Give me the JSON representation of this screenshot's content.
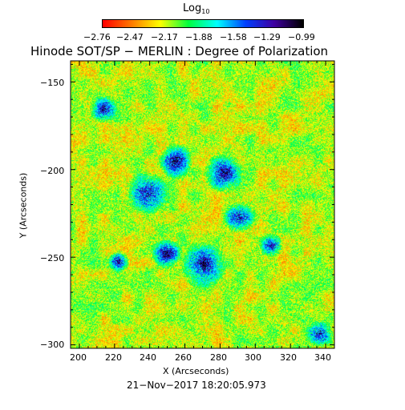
{
  "colorbar": {
    "title": "Log",
    "title_sub": "10",
    "tick_labels": [
      "−2.76",
      "−2.47",
      "−2.17",
      "−1.88",
      "−1.58",
      "−1.29",
      "−0.99"
    ],
    "colormap": [
      "#ff0000",
      "#ff7a00",
      "#ffff00",
      "#00ff40",
      "#00ffff",
      "#0040ff",
      "#4000a0",
      "#000000"
    ]
  },
  "plot": {
    "title": "Hinode SOT/SP − MERLIN : Degree of Polarization",
    "xlabel": "X (Arcseconds)",
    "ylabel": "Y (Arcseconds)",
    "x_ticks": [
      "200",
      "220",
      "240",
      "260",
      "280",
      "300",
      "320",
      "340"
    ],
    "y_ticks": [
      "−150",
      "−200",
      "−250",
      "−300"
    ],
    "xlim": [
      195,
      345
    ],
    "ylim": [
      -302,
      -138
    ],
    "timestamp": "21−Nov−2017 18:20:05.973"
  }
}
